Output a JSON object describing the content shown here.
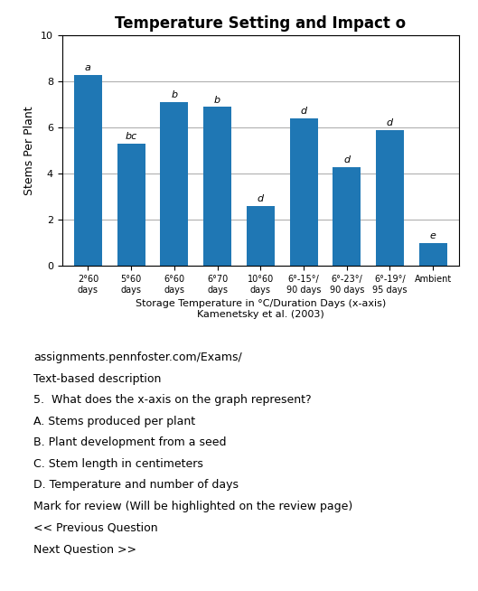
{
  "chart_data": {
    "type": "bar",
    "title": "Temperature Setting and Impact o",
    "categories": [
      "2°60\ndays",
      "5°60\ndays",
      "6°60\ndays",
      "6°70\ndays",
      "10°60\ndays",
      "6°-15°/\n90 days",
      "6°-23°/\n90 days",
      "6°-19°/\n95 days",
      "Ambient"
    ],
    "values": [
      8.3,
      5.3,
      7.1,
      6.9,
      2.6,
      6.4,
      4.3,
      5.9,
      1.0
    ],
    "bar_annotations": [
      "a",
      "bc",
      "b",
      "b",
      "d",
      "d",
      "d",
      "d",
      "e"
    ],
    "xlabel": "Storage Temperature in °C/Duration Days (x-axis)\nKamenetsky et al. (2003)",
    "ylabel": "Stems Per Plant",
    "ylim": [
      0,
      10
    ],
    "yticks": [
      0,
      2,
      4,
      6,
      8,
      10
    ],
    "grid": true,
    "annotations": [
      "assignments.pennfoster.com/Exams/",
      "Text-based description",
      "5.  What does the x-axis on the graph represent?",
      "A. Stems produced per plant",
      "B. Plant development from a seed",
      "C. Stem length in centimeters",
      "D. Temperature and number of days",
      "Mark for review (Will be highlighted on the review page)",
      "<< Previous Question",
      "Next Question >>"
    ]
  }
}
